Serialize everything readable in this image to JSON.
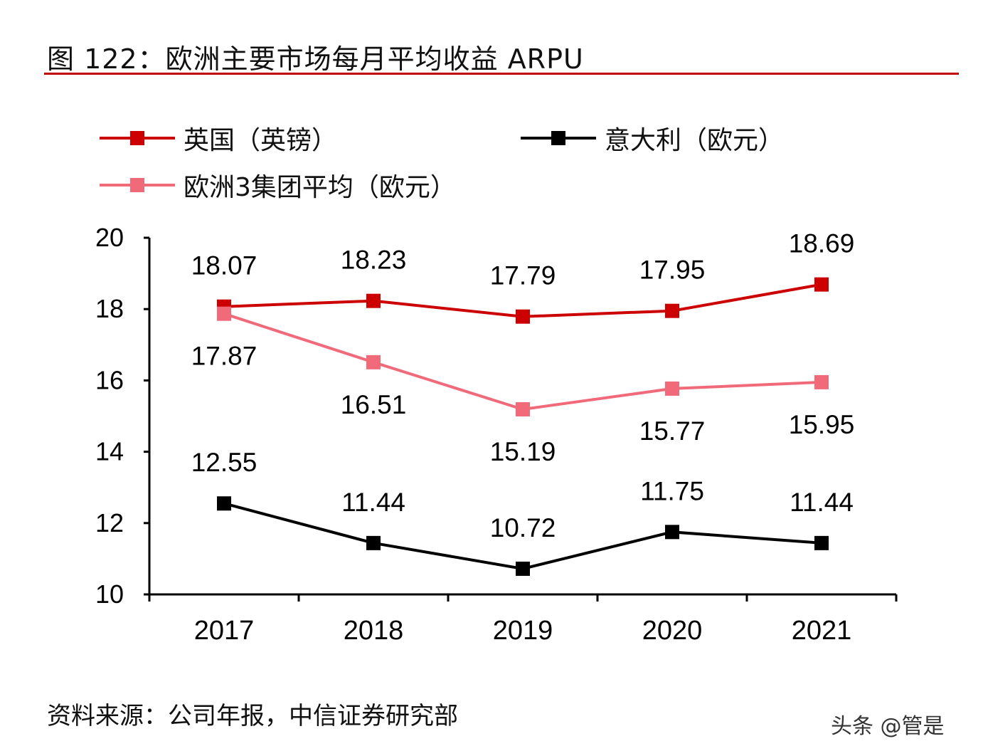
{
  "title": "图 122：欧洲主要市场每月平均收益 ARPU",
  "source": "资料来源：公司年报，中信证券研究部",
  "watermark": "头条 @管是",
  "chart_data": {
    "type": "line",
    "title": "图 122：欧洲主要市场每月平均收益 ARPU",
    "categories": [
      "2017",
      "2018",
      "2019",
      "2020",
      "2021"
    ],
    "ylim": [
      10,
      20
    ],
    "yticks": [
      "10",
      "12",
      "14",
      "16",
      "18",
      "20"
    ],
    "grid": false,
    "legend": "top",
    "series": [
      {
        "name": "英国（英镑）",
        "color": "#cc0000",
        "values": [
          18.07,
          18.23,
          17.79,
          17.95,
          18.69
        ],
        "labels": [
          "18.07",
          "18.23",
          "17.79",
          "17.95",
          "18.69"
        ],
        "label_pos": "above"
      },
      {
        "name": "意大利（欧元）",
        "color": "#000000",
        "values": [
          12.55,
          11.44,
          10.72,
          11.75,
          11.44
        ],
        "labels": [
          "12.55",
          "11.44",
          "10.72",
          "11.75",
          "11.44"
        ],
        "label_pos": "above"
      },
      {
        "name": "欧洲3集团平均（欧元）",
        "color": "#f06a7a",
        "values": [
          17.87,
          16.51,
          15.19,
          15.77,
          15.95
        ],
        "labels": [
          "17.87",
          "16.51",
          "15.19",
          "15.77",
          "15.95"
        ],
        "label_pos": "below"
      }
    ]
  }
}
